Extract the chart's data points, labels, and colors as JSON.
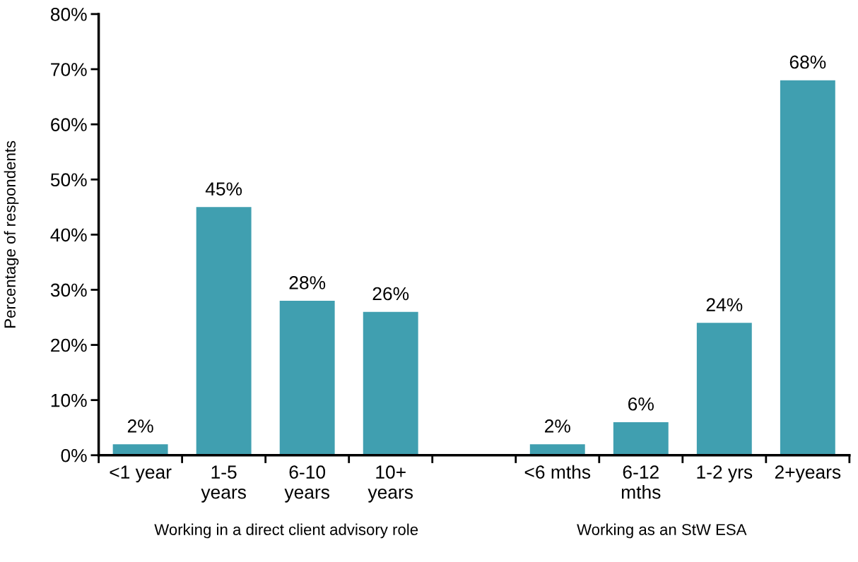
{
  "chart_data": {
    "type": "bar",
    "categories": [
      "<1 year",
      "1-5\nyears",
      "6-10\nyears",
      "10+\nyears",
      null,
      "<6 mths",
      "6-12\nmths",
      "1-2 yrs",
      "2+years"
    ],
    "values": [
      2,
      45,
      28,
      26,
      null,
      2,
      6,
      24,
      68
    ],
    "color": "#409fb0",
    "ylabel": "Percentage of respondents",
    "ylim": [
      0,
      80
    ],
    "yticks": [
      {
        "value": 0,
        "label": "0%"
      },
      {
        "value": 10,
        "label": "10%"
      },
      {
        "value": 20,
        "label": "20%"
      },
      {
        "value": 30,
        "label": "30%"
      },
      {
        "value": 40,
        "label": "40%"
      },
      {
        "value": 50,
        "label": "50%"
      },
      {
        "value": 60,
        "label": "60%"
      },
      {
        "value": 70,
        "label": "70%"
      },
      {
        "value": 80,
        "label": "80%"
      }
    ],
    "value_labels": [
      "2%",
      "45%",
      "28%",
      "26%",
      null,
      "2%",
      "6%",
      "24%",
      "68%"
    ],
    "grid": false,
    "legend": false,
    "annotations": [
      "Working in a direct client advisory role",
      "Working as an StW ESA"
    ]
  }
}
